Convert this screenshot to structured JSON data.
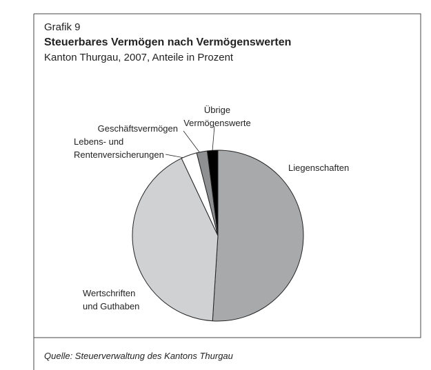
{
  "chart_data": {
    "type": "pie",
    "label": "Grafik 9",
    "title": "Steuerbares Vermögen nach Vermögenswerten",
    "subtitle": "Kanton Thurgau, 2007, Anteile in Prozent",
    "categories": [
      [
        "Liegenschaften"
      ],
      [
        "Wertschriften",
        "und Guthaben"
      ],
      [
        "Lebens- und",
        "Rentenversicherungen"
      ],
      [
        "Geschäftsvermögen"
      ],
      [
        "Übrige",
        "Vermögenswerte"
      ]
    ],
    "values": [
      51,
      42,
      3,
      2,
      2
    ],
    "colors": [
      "#a7a9ab",
      "#d0d1d3",
      "#ffffff",
      "#8e9092",
      "#000000"
    ],
    "source": "Quelle: Steuerverwaltung des Kantons Thurgau"
  }
}
